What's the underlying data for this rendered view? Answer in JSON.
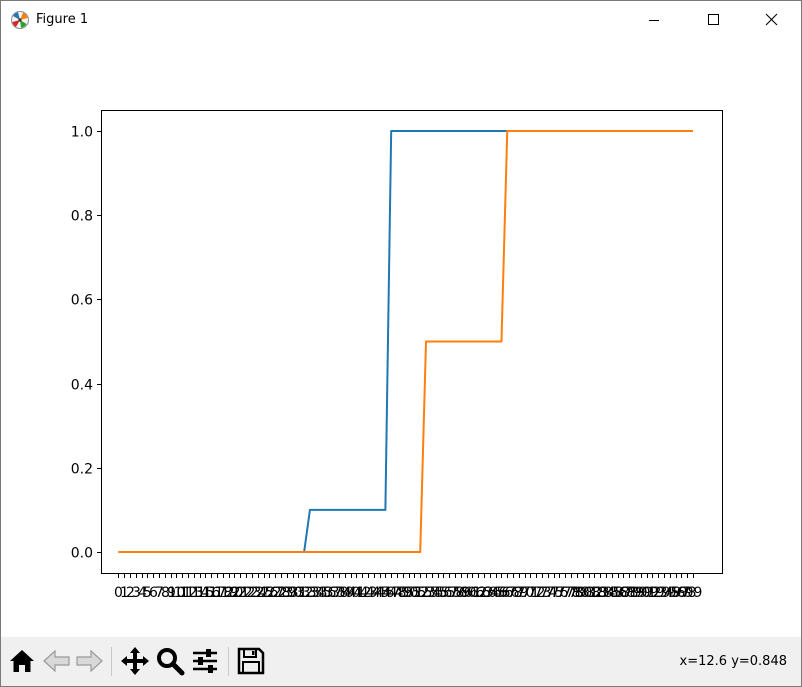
{
  "window": {
    "title": "Figure 1",
    "app_icon": "matplotlib-figure-icon",
    "controls": [
      "minimize-icon",
      "maximize-icon",
      "close-icon"
    ]
  },
  "toolbar": {
    "buttons": [
      "home-icon",
      "back-arrow-icon",
      "forward-arrow-icon",
      "pan-move-icon",
      "zoom-magnifier-icon",
      "configure-subplots-icon",
      "save-floppy-icon"
    ],
    "coordinates": "x=12.6 y=0.848"
  },
  "chart_data": {
    "type": "line",
    "title": "",
    "xlabel": "",
    "ylabel": "",
    "x_categories": [
      "0",
      "1",
      "2",
      "3",
      "4",
      "5",
      "6",
      "7",
      "8",
      "9",
      "10",
      "11",
      "12",
      "13",
      "14",
      "15",
      "16",
      "17",
      "18",
      "19",
      "20",
      "21",
      "22",
      "23",
      "24",
      "25",
      "26",
      "27",
      "28",
      "29",
      "30",
      "31",
      "32",
      "33",
      "34",
      "35",
      "36",
      "37",
      "38",
      "39",
      "40",
      "41",
      "42",
      "43",
      "44",
      "45",
      "46",
      "47",
      "48",
      "49",
      "50",
      "51",
      "52",
      "53",
      "54",
      "55",
      "56",
      "57",
      "58",
      "59",
      "60",
      "61",
      "62",
      "63",
      "64",
      "65",
      "66",
      "67",
      "68",
      "69",
      "70",
      "71",
      "72",
      "73",
      "74",
      "75",
      "76",
      "77",
      "78",
      "79",
      "80",
      "81",
      "82",
      "83",
      "84",
      "85",
      "86",
      "87",
      "88",
      "89",
      "90",
      "91",
      "92",
      "93",
      "94",
      "95",
      "96",
      "97",
      "98",
      "99"
    ],
    "xlim": [
      -3,
      104
    ],
    "ylim": [
      -0.05,
      1.05
    ],
    "yticks": [
      "0.0",
      "0.2",
      "0.4",
      "0.6",
      "0.8",
      "1.0"
    ],
    "grid": false,
    "series": [
      {
        "color": "#1f77b4",
        "x": [
          0,
          32,
          33,
          46,
          47,
          67,
          99
        ],
        "y": [
          0.0,
          0.0,
          0.1,
          0.1,
          1.0,
          1.0,
          1.0
        ]
      },
      {
        "color": "#ff7f0e",
        "x": [
          0,
          52,
          53,
          66,
          67,
          99
        ],
        "y": [
          0.0,
          0.0,
          0.5,
          0.5,
          1.0,
          1.0
        ]
      }
    ]
  }
}
